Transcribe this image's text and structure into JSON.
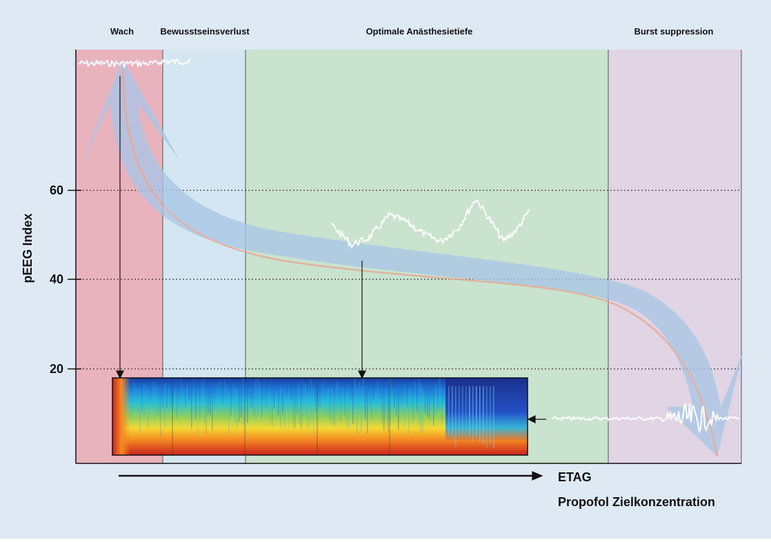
{
  "figure": {
    "background_color": "#dfe9f3",
    "zones": [
      {
        "label": "Wach",
        "color": "#e9b3bd"
      },
      {
        "label": "Bewusstseinsverlust",
        "color": "#d4e6f1"
      },
      {
        "label": "Optimale Anästhesietiefe",
        "color": "#c9e3cf"
      },
      {
        "label": "Burst suppression",
        "color": "#e1d4e4"
      }
    ],
    "y_axis": {
      "title": "pEEG Index",
      "ticks": [
        "60",
        "40",
        "20"
      ]
    },
    "x_axis": {
      "label_primary": "ETAG",
      "label_secondary": "Propofol Zielkonzentration"
    },
    "trend_band_color": "#a9c6e6",
    "trend_line_color": "#e8a58f",
    "eeg_trace_color": "#ffffff",
    "spectrogram": {
      "description_colors": [
        "#1a237e",
        "#1e88e5",
        "#26c6da",
        "#9ccc65",
        "#fdd835",
        "#fb8c00",
        "#d32f2f"
      ]
    }
  }
}
